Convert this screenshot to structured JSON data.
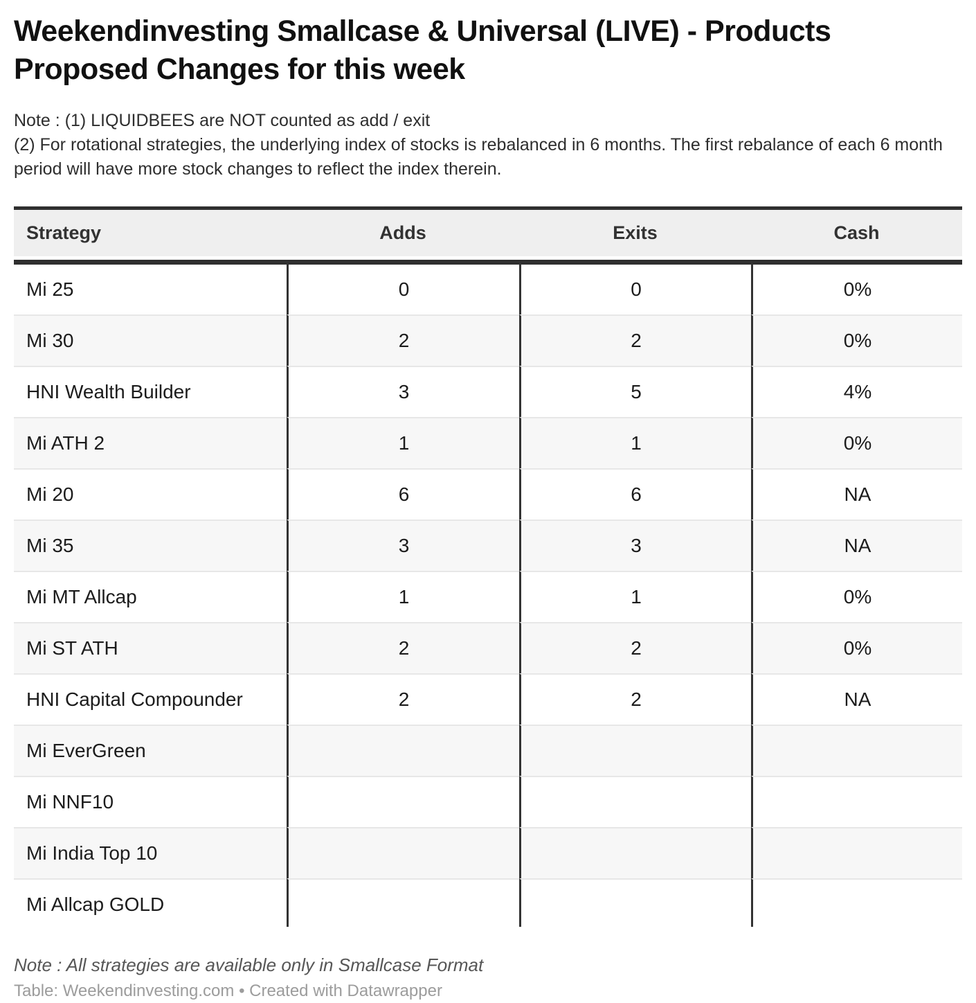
{
  "title_lines": [
    "Weekendinvesting Smallcase & Universal (LIVE) - Products",
    "Proposed Changes for this week"
  ],
  "header_notes": [
    "Note : (1) LIQUIDBEES are NOT counted as add / exit",
    "(2) For rotational strategies, the underlying index of stocks is rebalanced in 6 months. The first rebalance of each 6 month period will have more stock changes to reflect the index therein."
  ],
  "chart_data": {
    "type": "table",
    "title": "Weekendinvesting Smallcase & Universal (LIVE) - Products Proposed Changes for this week",
    "columns": [
      "Strategy",
      "Adds",
      "Exits",
      "Cash"
    ],
    "rows": [
      [
        "Mi 25",
        "0",
        "0",
        "0%"
      ],
      [
        "Mi 30",
        "2",
        "2",
        "0%"
      ],
      [
        "HNI Wealth Builder",
        "3",
        "5",
        "4%"
      ],
      [
        "Mi ATH 2",
        "1",
        "1",
        "0%"
      ],
      [
        "Mi 20",
        "6",
        "6",
        "NA"
      ],
      [
        "Mi 35",
        "3",
        "3",
        "NA"
      ],
      [
        "Mi MT Allcap",
        "1",
        "1",
        "0%"
      ],
      [
        "Mi ST ATH",
        "2",
        "2",
        "0%"
      ],
      [
        "HNI Capital Compounder",
        "2",
        "2",
        "NA"
      ],
      [
        "Mi EverGreen",
        "",
        "",
        ""
      ],
      [
        "Mi NNF10",
        "",
        "",
        ""
      ],
      [
        "Mi India Top 10",
        "",
        "",
        ""
      ],
      [
        "Mi Allcap GOLD",
        "",
        "",
        ""
      ]
    ],
    "layout": {
      "zebra_striping": true,
      "numeric_columns_centered": true,
      "last_row_clipped": true
    }
  },
  "footer": {
    "note": "Note : All strategies are available only in Smallcase Format",
    "credit": "Table: Weekendinvesting.com • Created with Datawrapper"
  },
  "colors": {
    "heavy_border": "#2f2f2f",
    "column_divider": "#333333",
    "row_divider": "#e7e7e7",
    "header_bg": "#efefef",
    "zebra_bg": "#f7f7f7",
    "cell_text": "#1c1c1c",
    "note_text": "#565656",
    "credit_text": "#9c9c9c"
  }
}
